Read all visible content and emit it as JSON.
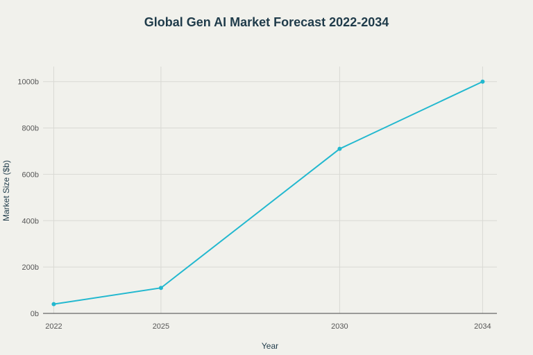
{
  "chart_data": {
    "type": "line",
    "title": "Global Gen AI Market Forecast 2022-2034",
    "xlabel": "Year",
    "ylabel": "Market Size ($b)",
    "x": [
      2022,
      2025,
      2030,
      2034
    ],
    "x_ticks": [
      "2022",
      "2025",
      "2030",
      "2034"
    ],
    "y_ticks": [
      {
        "value": 0,
        "label": "0b"
      },
      {
        "value": 200,
        "label": "200b"
      },
      {
        "value": 400,
        "label": "400b"
      },
      {
        "value": 600,
        "label": "600b"
      },
      {
        "value": 800,
        "label": "800b"
      },
      {
        "value": 1000,
        "label": "1000b"
      }
    ],
    "series": [
      {
        "values": [
          40,
          110,
          710,
          1000
        ],
        "color": "#22b8cf"
      }
    ],
    "xlim": [
      2021.7,
      2034.4
    ],
    "ylim": [
      0,
      1065
    ],
    "grid": true,
    "legend": "none"
  }
}
